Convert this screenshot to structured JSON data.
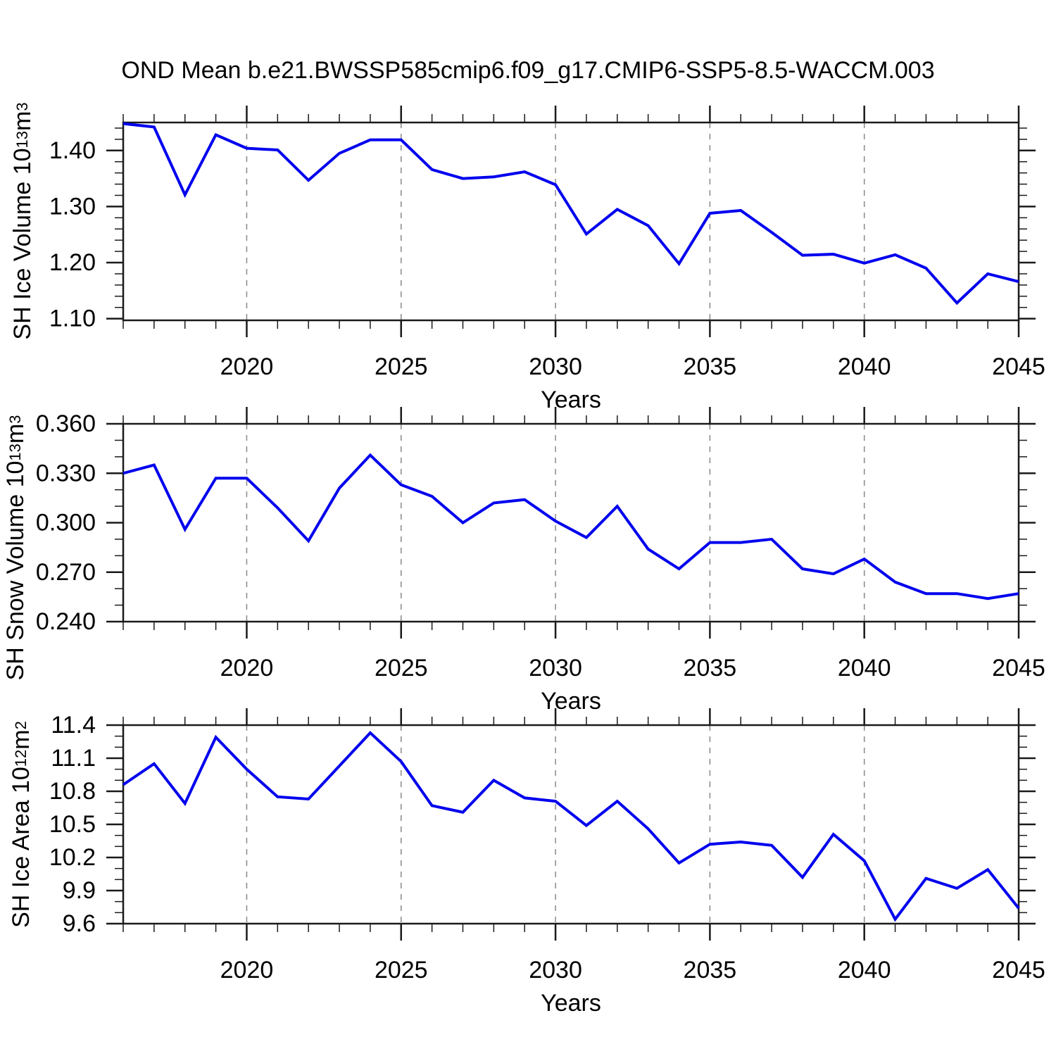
{
  "title": "OND Mean b.e21.BWSSP585cmip6.f09_g17.CMIP6-SSP5-8.5-WACCM.003",
  "colors": {
    "line": "#0000ee",
    "grid": "#888888",
    "axis": "#1a1a1a",
    "text": "#000000",
    "background": "#ffffff"
  },
  "chart_data": [
    {
      "type": "line",
      "xlabel": "Years",
      "ylabel": {
        "prefix": "SH Ice Volume 10",
        "sup1": "13",
        "mid": " m",
        "sup2": "3",
        "plain": "SH Ice Volume 10^13 m^3"
      },
      "x": [
        2016,
        2017,
        2018,
        2019,
        2020,
        2021,
        2022,
        2023,
        2024,
        2025,
        2026,
        2027,
        2028,
        2029,
        2030,
        2031,
        2032,
        2033,
        2034,
        2035,
        2036,
        2037,
        2038,
        2039,
        2040,
        2041,
        2042,
        2043,
        2044,
        2045
      ],
      "values": [
        1.448,
        1.442,
        1.321,
        1.428,
        1.404,
        1.401,
        1.347,
        1.395,
        1.419,
        1.419,
        1.366,
        1.35,
        1.353,
        1.362,
        1.339,
        1.251,
        1.295,
        1.266,
        1.198,
        1.288,
        1.293,
        1.254,
        1.213,
        1.215,
        1.199,
        1.214,
        1.19,
        1.128,
        1.18,
        1.166
      ],
      "xlim": [
        2016,
        2045
      ],
      "ylim": [
        1.097,
        1.45
      ],
      "xticks": [
        2020,
        2025,
        2030,
        2035,
        2040,
        2045
      ],
      "xtick_labels": [
        "2020",
        "2025",
        "2030",
        "2035",
        "2040",
        "2045"
      ],
      "xgrid": [
        2020,
        2025,
        2030,
        2035,
        2040
      ],
      "yticks": [
        1.1,
        1.2,
        1.3,
        1.4
      ],
      "ytick_labels": [
        "1.10",
        "1.20",
        "1.30",
        "1.40"
      ],
      "yminor_step": 0.02,
      "grid_style": "vertical-dashed",
      "legend": "none"
    },
    {
      "type": "line",
      "xlabel": "Years",
      "ylabel": {
        "prefix": "SH Snow Volume 10",
        "sup1": "13",
        "mid": " m",
        "sup2": "3",
        "plain": "SH Snow Volume 10^13 m^3"
      },
      "x": [
        2016,
        2017,
        2018,
        2019,
        2020,
        2021,
        2022,
        2023,
        2024,
        2025,
        2026,
        2027,
        2028,
        2029,
        2030,
        2031,
        2032,
        2033,
        2034,
        2035,
        2036,
        2037,
        2038,
        2039,
        2040,
        2041,
        2042,
        2043,
        2044,
        2045
      ],
      "values": [
        0.33,
        0.335,
        0.296,
        0.327,
        0.327,
        0.309,
        0.289,
        0.321,
        0.341,
        0.323,
        0.316,
        0.3,
        0.312,
        0.314,
        0.301,
        0.291,
        0.31,
        0.284,
        0.272,
        0.288,
        0.288,
        0.29,
        0.272,
        0.269,
        0.278,
        0.264,
        0.257,
        0.257,
        0.254,
        0.257
      ],
      "xlim": [
        2016,
        2045
      ],
      "ylim": [
        0.24,
        0.36
      ],
      "xticks": [
        2020,
        2025,
        2030,
        2035,
        2040,
        2045
      ],
      "xtick_labels": [
        "2020",
        "2025",
        "2030",
        "2035",
        "2040",
        "2045"
      ],
      "xgrid": [
        2020,
        2025,
        2030,
        2035,
        2040
      ],
      "yticks": [
        0.24,
        0.27,
        0.3,
        0.33,
        0.36
      ],
      "ytick_labels": [
        "0.240",
        "0.270",
        "0.300",
        "0.330",
        "0.360"
      ],
      "yminor_step": 0.01,
      "grid_style": "vertical-dashed",
      "legend": "none"
    },
    {
      "type": "line",
      "xlabel": "Years",
      "ylabel": {
        "prefix": "SH Ice Area 10",
        "sup1": "12",
        "mid": " m",
        "sup2": "2",
        "plain": "SH Ice Area 10^12 m^2"
      },
      "x": [
        2016,
        2017,
        2018,
        2019,
        2020,
        2021,
        2022,
        2023,
        2024,
        2025,
        2026,
        2027,
        2028,
        2029,
        2030,
        2031,
        2032,
        2033,
        2034,
        2035,
        2036,
        2037,
        2038,
        2039,
        2040,
        2041,
        2042,
        2043,
        2044,
        2045
      ],
      "values": [
        10.86,
        11.05,
        10.69,
        11.29,
        11.0,
        10.75,
        10.73,
        11.03,
        11.33,
        11.07,
        10.67,
        10.61,
        10.9,
        10.74,
        10.71,
        10.49,
        10.71,
        10.46,
        10.15,
        10.32,
        10.34,
        10.31,
        10.02,
        10.41,
        10.17,
        9.64,
        10.01,
        9.92,
        10.09,
        9.74
      ],
      "xlim": [
        2016,
        2045
      ],
      "ylim": [
        9.6,
        11.4
      ],
      "xticks": [
        2020,
        2025,
        2030,
        2035,
        2040,
        2045
      ],
      "xtick_labels": [
        "2020",
        "2025",
        "2030",
        "2035",
        "2040",
        "2045"
      ],
      "xgrid": [
        2020,
        2025,
        2030,
        2035,
        2040
      ],
      "yticks": [
        9.6,
        9.9,
        10.2,
        10.5,
        10.8,
        11.1,
        11.4
      ],
      "ytick_labels": [
        "9.6",
        "9.9",
        "10.2",
        "10.5",
        "10.8",
        "11.1",
        "11.4"
      ],
      "yminor_step": 0.1,
      "grid_style": "vertical-dashed",
      "legend": "none"
    }
  ]
}
